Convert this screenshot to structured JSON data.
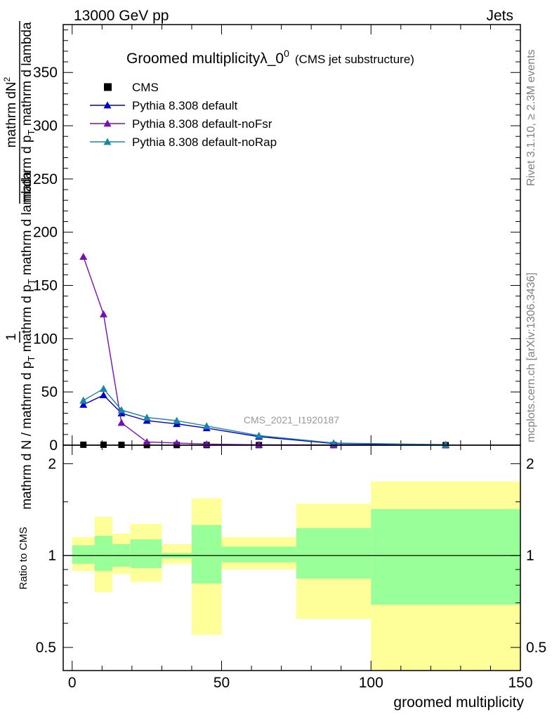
{
  "header": {
    "left": "13000 GeV pp",
    "right": "Jets"
  },
  "side_notes": {
    "rivet": "Rivet 3.1.10, ≥ 2.3M events",
    "mcplots": "mcplots.cern.ch [arXiv:1306.3436]"
  },
  "watermark": "CMS_2021_I1920187",
  "chart_data": [
    {
      "type": "line",
      "title": "Groomed multiplicityλ_0",
      "title_sup": "0",
      "subtitle": "(CMS jet substructure)",
      "ylabel": {
        "num_factor": "1",
        "num_frac": "mathrm dN",
        "den_frac": "mathrm d p",
        "den_sub": "T",
        "den_tail": " mathrm d lambda",
        "lower_main": "mathrm d N / mathrm d p",
        "lower_sub": "T",
        "lower_tail": " mathrm d p",
        "lower_sub2": "T",
        "lower_tail2": " mathrm d lambda",
        "num_sup": "2"
      },
      "xlim": [
        -3,
        150
      ],
      "ylim": [
        0,
        395
      ],
      "yticks": [
        0,
        50,
        100,
        150,
        200,
        250,
        300,
        350
      ],
      "x": [
        3.75,
        10.5,
        16.5,
        25,
        35,
        45,
        62.5,
        87.5,
        125
      ],
      "series": [
        {
          "name": "CMS",
          "color": "#000000",
          "marker": "square",
          "values": [
            0.4,
            0.4,
            0.3,
            0.1,
            0.1,
            0.1,
            0.1,
            0.05,
            0.02
          ]
        },
        {
          "name": "Pythia 8.308 default",
          "color": "#0000cc",
          "marker": "triangle",
          "values": [
            38,
            47,
            30,
            23,
            20,
            16,
            8,
            1.5,
            0.4
          ]
        },
        {
          "name": "Pythia 8.308 default-noFsr",
          "color": "#7a0fb0",
          "marker": "triangle",
          "values": [
            177,
            123,
            21,
            3,
            2,
            1,
            0.4,
            0.2,
            0.1
          ]
        },
        {
          "name": "Pythia 8.308 default-noRap",
          "color": "#1a85a6",
          "marker": "triangle",
          "values": [
            42,
            53,
            33,
            26,
            23,
            18,
            9,
            2,
            0.5
          ]
        }
      ]
    },
    {
      "type": "area",
      "ylabel": "Ratio to CMS",
      "xlabel": "groomed multiplicity",
      "xlim": [
        -3,
        150
      ],
      "ylim": [
        0.42,
        2.3
      ],
      "log_y": true,
      "xticks": [
        0,
        50,
        100,
        150
      ],
      "yticks": [
        0.5,
        1,
        2
      ],
      "colors": {
        "inner": "#99ff99",
        "outer": "#ffff99",
        "ratio_line": "#000000"
      },
      "bins": [
        {
          "lo": 0,
          "hi": 7.5,
          "inner": [
            0.94,
            1.08
          ],
          "outer": [
            0.89,
            1.15
          ]
        },
        {
          "lo": 7.5,
          "hi": 13.5,
          "inner": [
            0.89,
            1.16
          ],
          "outer": [
            0.76,
            1.34
          ]
        },
        {
          "lo": 13.5,
          "hi": 19.5,
          "inner": [
            0.92,
            1.09
          ],
          "outer": [
            0.87,
            1.18
          ]
        },
        {
          "lo": 19.5,
          "hi": 30,
          "inner": [
            0.91,
            1.13
          ],
          "outer": [
            0.82,
            1.27
          ]
        },
        {
          "lo": 30,
          "hi": 40,
          "inner": [
            0.98,
            1.02
          ],
          "outer": [
            0.94,
            1.09
          ]
        },
        {
          "lo": 40,
          "hi": 50,
          "inner": [
            0.81,
            1.26
          ],
          "outer": [
            0.55,
            1.54
          ]
        },
        {
          "lo": 50,
          "hi": 75,
          "inner": [
            0.95,
            1.07
          ],
          "outer": [
            0.9,
            1.15
          ]
        },
        {
          "lo": 75,
          "hi": 100,
          "inner": [
            0.84,
            1.23
          ],
          "outer": [
            0.62,
            1.48
          ]
        },
        {
          "lo": 100,
          "hi": 150,
          "inner": [
            0.69,
            1.42
          ],
          "outer": [
            0.42,
            1.75
          ]
        }
      ]
    }
  ]
}
